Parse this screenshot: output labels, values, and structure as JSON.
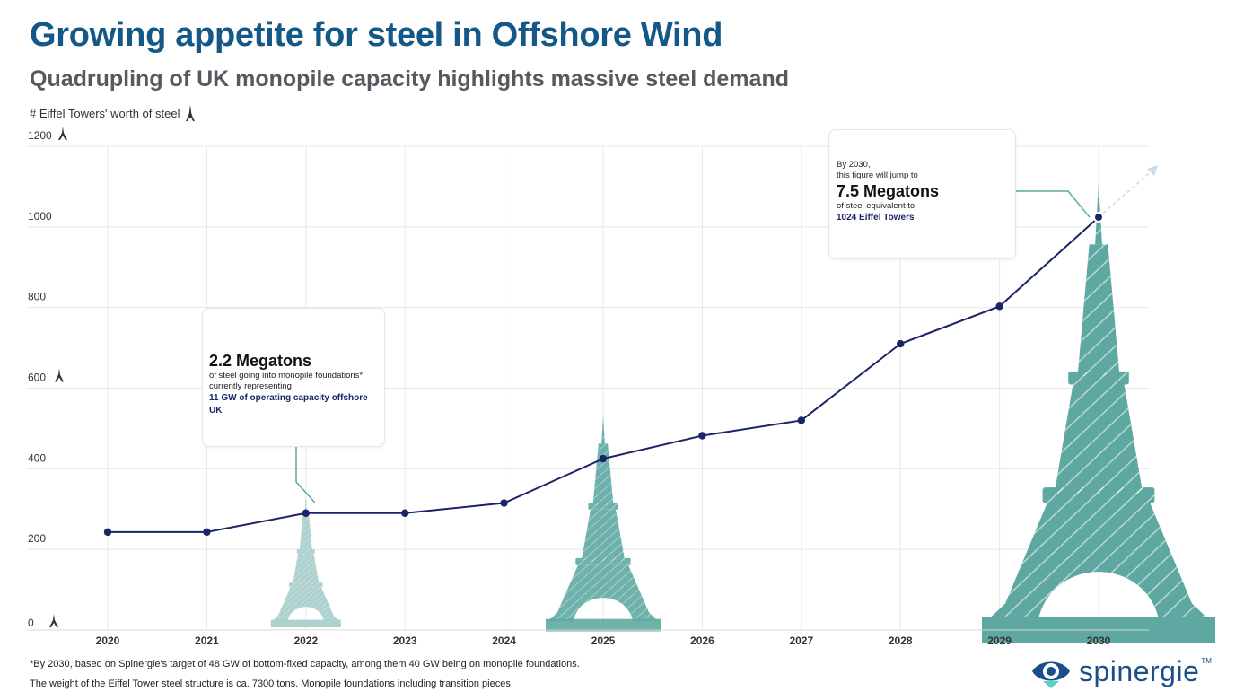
{
  "title": "Growing appetite for steel in Offshore Wind",
  "subtitle": "Quadrupling of UK monopile capacity highlights massive steel demand",
  "y_unit_label": "# Eiffel Towers' worth of steel",
  "chart_data": {
    "type": "line",
    "title": "Growing appetite for steel in Offshore Wind",
    "ylabel": "# Eiffel Towers' worth of steel",
    "xlabel": "",
    "categories": [
      "2020",
      "2021",
      "2022",
      "2023",
      "2024",
      "2025",
      "2026",
      "2027",
      "2028",
      "2029",
      "2030"
    ],
    "series": [
      {
        "name": "Eiffel Towers' worth of steel",
        "values": [
          243,
          243,
          290,
          290,
          315,
          425,
          482,
          520,
          710,
          803,
          1024
        ]
      }
    ],
    "yticks": [
      "0",
      "200",
      "400",
      "600",
      "800",
      "1000",
      "1200"
    ],
    "ylim": [
      0,
      1200
    ],
    "grid": true,
    "colors": {
      "line": "#1b2466",
      "tower": "#5fa8a2",
      "tower_light": "#a9cfcc",
      "grid": "#e8e8e8"
    }
  },
  "callout_2022": {
    "headline": "2.2 Megatons",
    "line1": "of steel going into monopile foundations*,",
    "line2": "currently representing",
    "accent": "11 GW of operating capacity offshore UK"
  },
  "callout_2030": {
    "line1": "By 2030,",
    "line2": "this figure will jump to",
    "headline": "7.5 Megatons",
    "line3": "of steel equivalent to",
    "accent": "1024 Eiffel Towers"
  },
  "footnotes": {
    "line1": "*By 2030, based on Spinergie's target of 48 GW of bottom-fixed capacity, among them 40 GW being on monopile foundations.",
    "line2": "The weight of the Eiffel Tower steel structure is ca. 7300 tons. Monopile foundations including transition pieces."
  },
  "logo": {
    "name": "spinergie",
    "tm": "TM"
  }
}
